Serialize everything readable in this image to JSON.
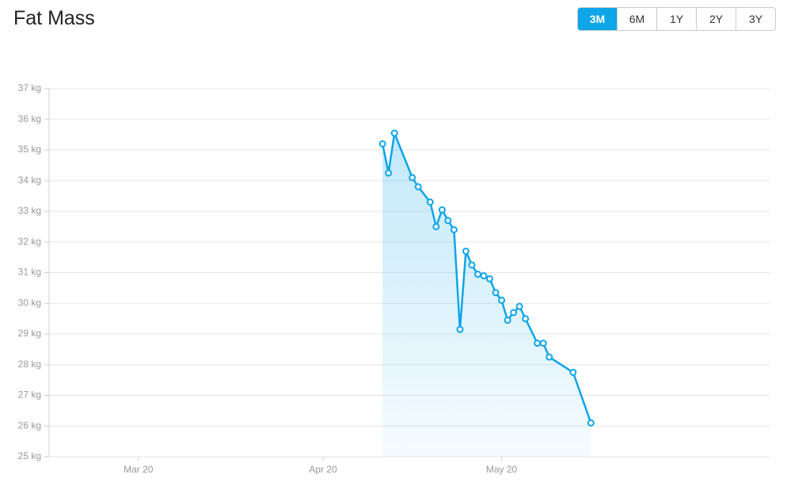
{
  "range_buttons": [
    {
      "label": "3M",
      "active": true
    },
    {
      "label": "6M",
      "active": false
    },
    {
      "label": "1Y",
      "active": false
    },
    {
      "label": "2Y",
      "active": false
    },
    {
      "label": "3Y",
      "active": false
    }
  ],
  "chart_data": {
    "type": "line",
    "title": "Fat Mass",
    "x": [
      "Apr 30",
      "May 1",
      "May 2",
      "May 5",
      "May 6",
      "May 8",
      "May 9",
      "May 10",
      "May 11",
      "May 12",
      "May 13",
      "May 14",
      "May 15",
      "May 16",
      "May 17",
      "May 18",
      "May 19",
      "May 20",
      "May 21",
      "May 22",
      "May 23",
      "May 24",
      "May 26",
      "May 27",
      "May 28",
      "Jun 1",
      "Jun 4"
    ],
    "series": [
      {
        "name": "Fat Mass",
        "color": "#0ea5e9",
        "values": [
          35.2,
          34.25,
          35.55,
          34.1,
          33.8,
          33.3,
          32.5,
          33.05,
          32.7,
          32.4,
          29.15,
          31.7,
          31.25,
          30.95,
          30.9,
          30.8,
          30.35,
          30.1,
          29.45,
          29.7,
          29.9,
          29.5,
          28.7,
          28.7,
          28.25,
          27.75,
          26.1
        ]
      }
    ],
    "xlim": [
      "Mar 5",
      "Jul 4"
    ],
    "xticks": [
      "Mar 20",
      "Apr 20",
      "May 20"
    ],
    "ylim": [
      25,
      37
    ],
    "yticks": [
      {
        "value": 25,
        "label": "25 kg"
      },
      {
        "value": 26,
        "label": "26 kg"
      },
      {
        "value": 27,
        "label": "27 kg"
      },
      {
        "value": 28,
        "label": "28 kg"
      },
      {
        "value": 29,
        "label": "29 kg"
      },
      {
        "value": 30,
        "label": "30 kg"
      },
      {
        "value": 31,
        "label": "31 kg"
      },
      {
        "value": 32,
        "label": "32 kg"
      },
      {
        "value": 33,
        "label": "33 kg"
      },
      {
        "value": 34,
        "label": "34 kg"
      },
      {
        "value": 35,
        "label": "35 kg"
      },
      {
        "value": 36,
        "label": "36 kg"
      },
      {
        "value": 37,
        "label": "37 kg"
      }
    ],
    "grid": true,
    "area_fill": true
  }
}
